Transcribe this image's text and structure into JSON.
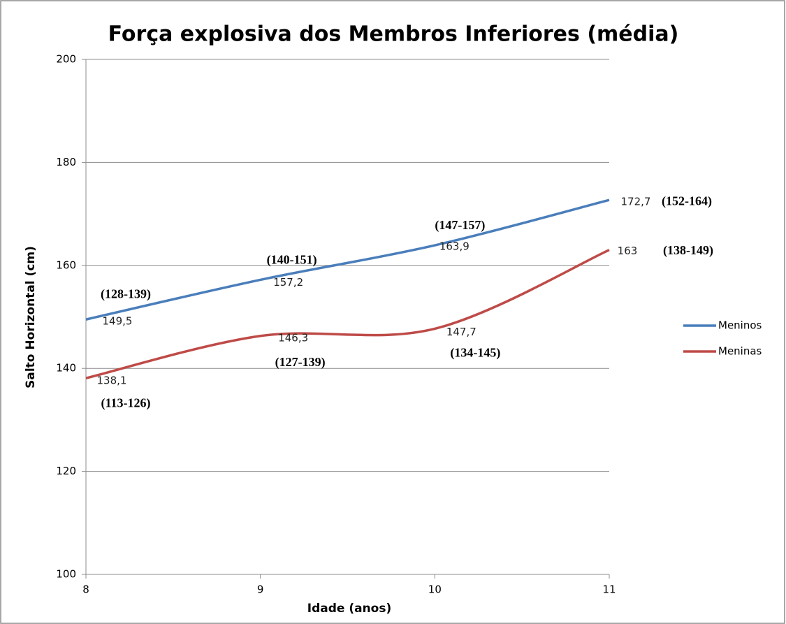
{
  "chart_data": {
    "type": "line",
    "title": "Força explosiva dos Membros Inferiores (média)",
    "x_label": "Idade (anos)",
    "y_label": "Salto Horizontal (cm)",
    "x": [
      8,
      9,
      10,
      11
    ],
    "xlim": [
      8,
      11
    ],
    "xticks": [
      8,
      9,
      10,
      11
    ],
    "ylim": [
      100,
      200
    ],
    "yticks": [
      100,
      120,
      140,
      160,
      180,
      200
    ],
    "grid": true,
    "smooth": true,
    "legend": "right",
    "series": [
      {
        "name": "Meninos",
        "color": "#4a7ebb",
        "values": [
          149.5,
          157.2,
          163.9,
          172.7
        ],
        "value_labels": [
          "149,5",
          "157,2",
          "163,9",
          "172,7"
        ],
        "range_labels": [
          "(128-139)",
          "(140-151)",
          "(147-157)",
          "(152-164)"
        ]
      },
      {
        "name": "Meninas",
        "color": "#be4b48",
        "values": [
          138.1,
          146.3,
          147.7,
          163
        ],
        "value_labels": [
          "138,1",
          "146,3",
          "147,7",
          "163"
        ],
        "range_labels": [
          "(113-126)",
          "(127-139)",
          "(134-145)",
          "(138-149)"
        ]
      }
    ]
  }
}
